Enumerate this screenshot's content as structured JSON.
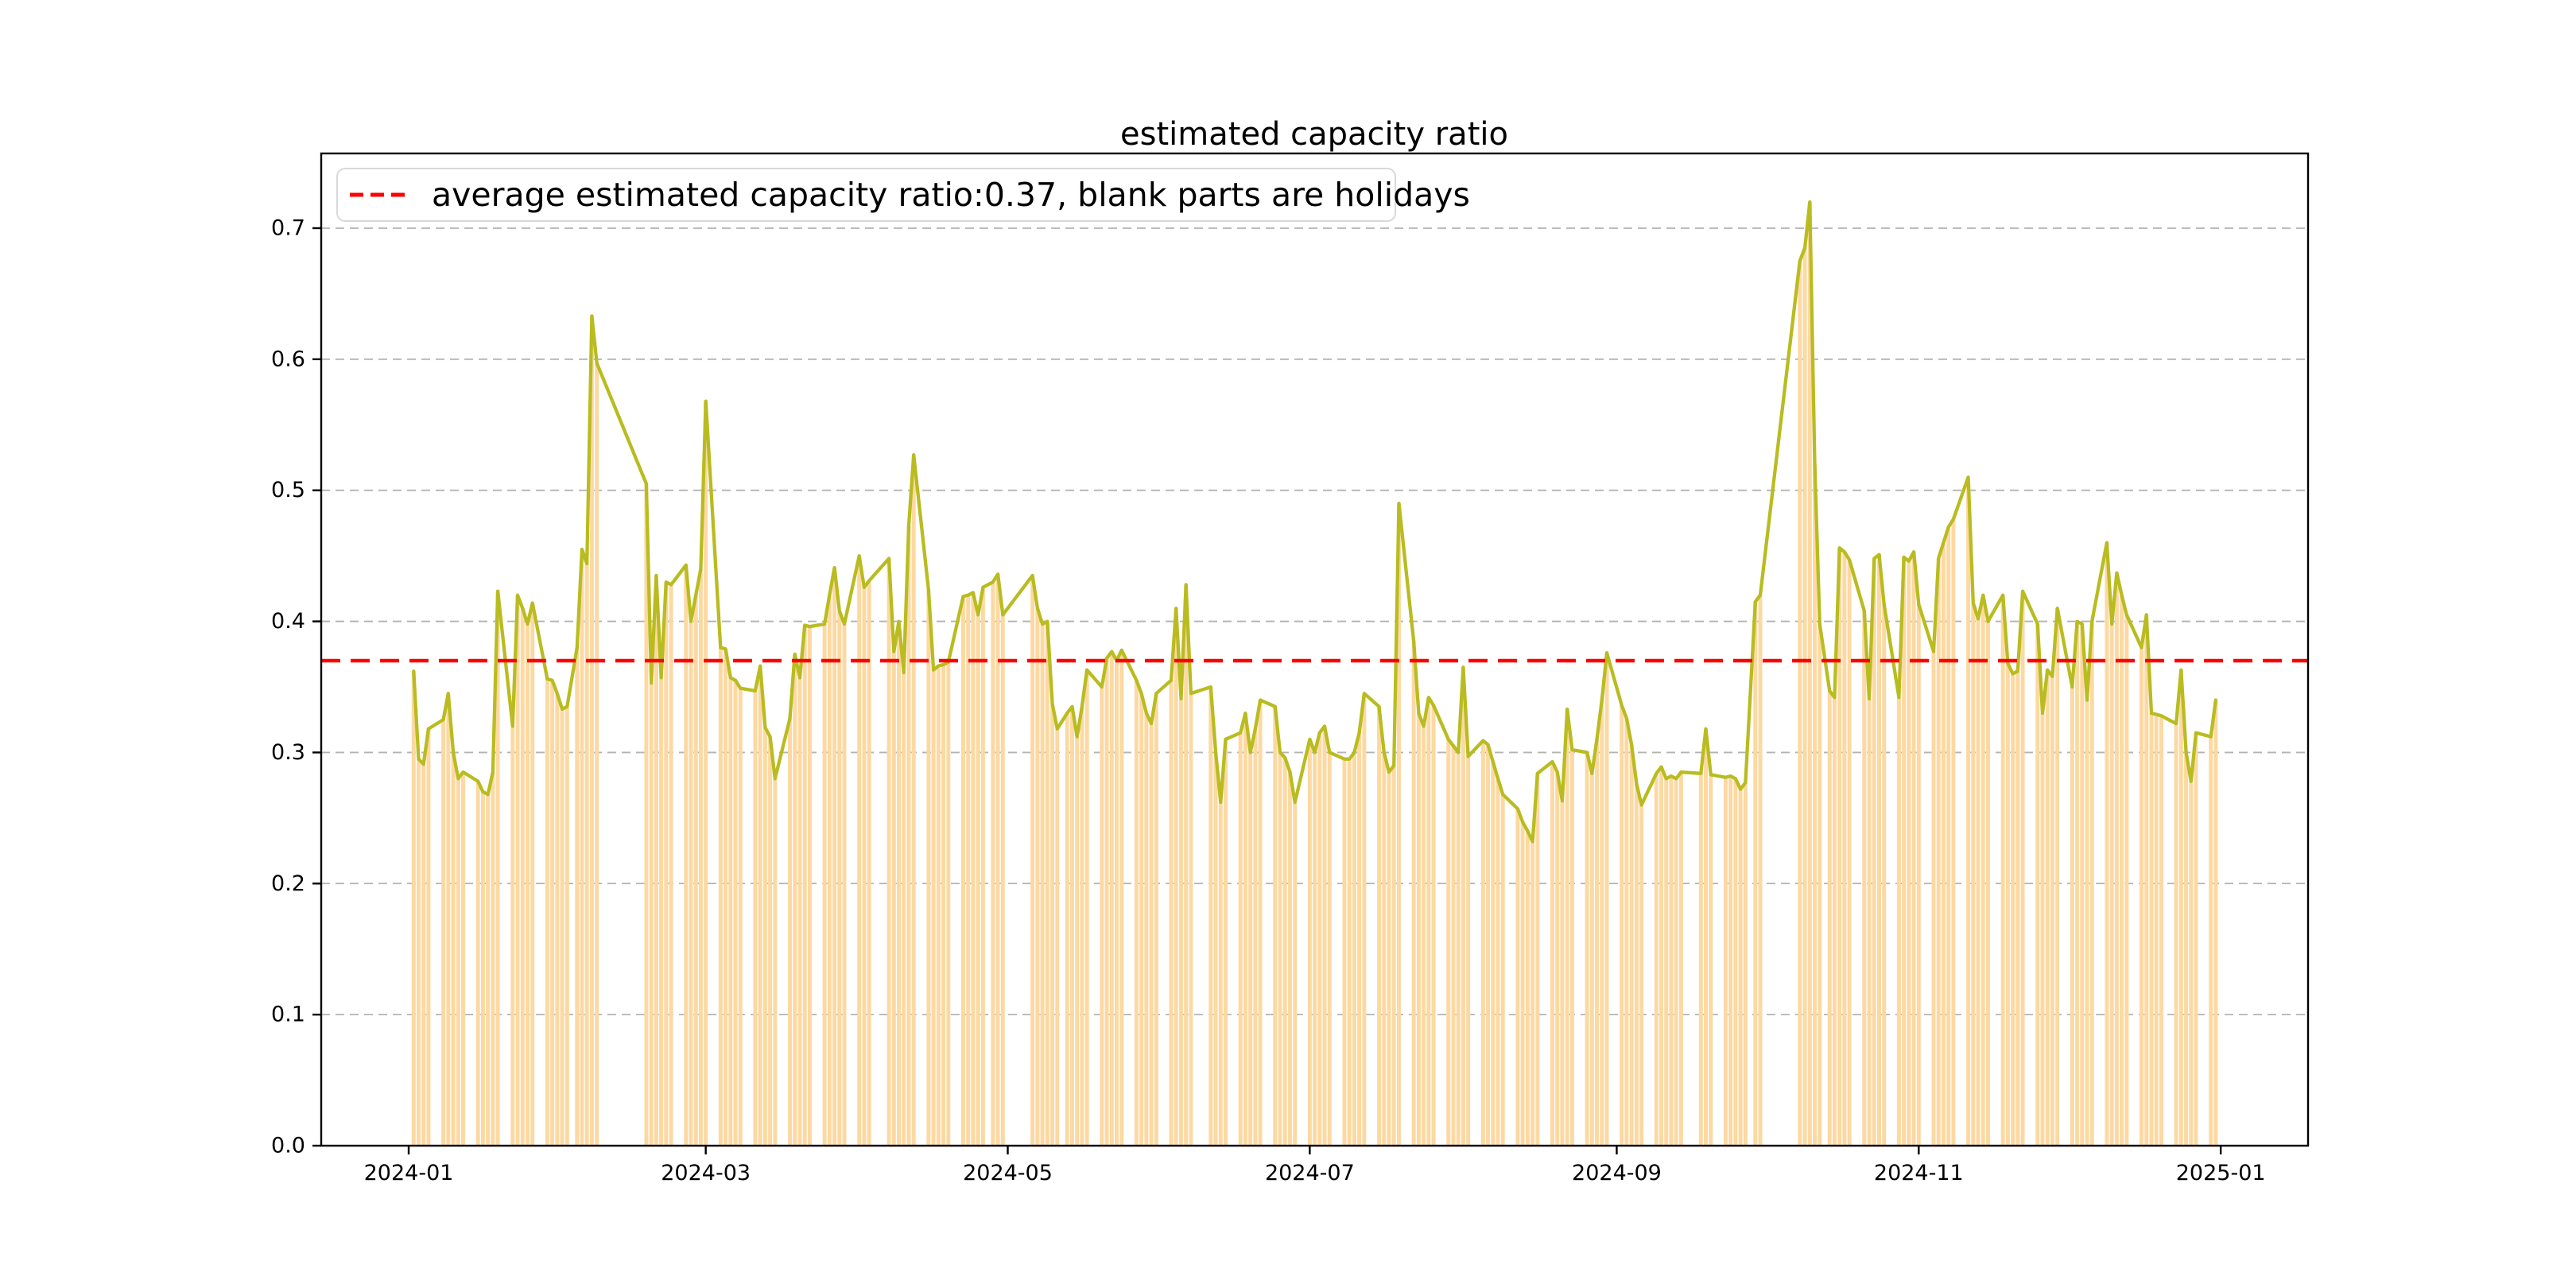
{
  "title": "estimated capacity ratio",
  "legend": {
    "label": "average estimated capacity ratio:0.37, blank parts are holidays",
    "sample_color": "#ff0000"
  },
  "chart_data": {
    "type": "line",
    "title": "estimated capacity ratio",
    "xlabel": "",
    "ylabel": "",
    "grid": true,
    "legend_position": "upper left",
    "average": 0.37,
    "ylim": [
      0,
      0.757
    ],
    "xlim_days": [
      -17.67,
      383.64
    ],
    "yticks": [
      0.0,
      0.1,
      0.2,
      0.3,
      0.4,
      0.5,
      0.6,
      0.7
    ],
    "xticks": [
      {
        "label": "2024-01",
        "day": 0
      },
      {
        "label": "2024-03",
        "day": 60
      },
      {
        "label": "2024-05",
        "day": 121
      },
      {
        "label": "2024-07",
        "day": 182
      },
      {
        "label": "2024-09",
        "day": 244
      },
      {
        "label": "2024-11",
        "day": 305
      },
      {
        "label": "2025-01",
        "day": 366
      }
    ],
    "start_date": "2024-01-01",
    "months": [
      "2024-01",
      "2024-02",
      "2024-03",
      "2024-04",
      "2024-05",
      "2024-06",
      "2024-07",
      "2024-08",
      "2024-09",
      "2024-10",
      "2024-11",
      "2024-12"
    ],
    "values_by_month": {
      "2024-01": [
        null,
        0.362,
        0.295,
        0.291,
        0.318,
        null,
        null,
        0.325,
        0.345,
        0.3,
        0.28,
        0.285,
        null,
        null,
        0.278,
        0.27,
        0.268,
        0.285,
        0.423,
        null,
        null,
        0.32,
        0.42,
        0.41,
        0.398,
        0.414,
        null,
        null,
        0.356,
        0.355,
        0.345
      ],
      "2024-02": [
        0.333,
        0.335,
        null,
        0.38,
        0.455,
        0.444,
        0.633,
        0.597,
        null,
        null,
        null,
        null,
        null,
        null,
        null,
        null,
        null,
        0.505,
        0.353,
        0.435,
        0.357,
        0.43,
        0.428,
        null,
        null,
        0.443,
        0.4,
        0.42,
        0.44
      ],
      "2024-03": [
        0.568,
        null,
        null,
        0.38,
        0.379,
        0.357,
        0.355,
        0.349,
        null,
        null,
        0.347,
        0.366,
        0.319,
        0.312,
        0.28,
        null,
        null,
        0.326,
        0.375,
        0.357,
        0.397,
        0.396,
        null,
        null,
        0.398,
        0.42,
        0.441,
        0.408,
        0.398,
        null,
        null
      ],
      "2024-04": [
        0.45,
        0.426,
        0.431,
        null,
        null,
        null,
        0.448,
        0.377,
        0.4,
        0.361,
        0.473,
        0.527,
        null,
        null,
        0.424,
        0.363,
        0.366,
        0.367,
        0.369,
        null,
        null,
        0.419,
        0.42,
        0.422,
        0.405,
        0.426,
        null,
        0.43,
        0.436,
        0.405
      ],
      "2024-05": [
        null,
        null,
        null,
        null,
        null,
        0.435,
        0.41,
        0.398,
        0.4,
        0.337,
        0.318,
        null,
        0.33,
        0.335,
        0.312,
        0.335,
        0.363,
        null,
        null,
        0.35,
        0.372,
        0.377,
        0.37,
        0.378,
        null,
        null,
        0.355,
        0.345,
        0.33,
        0.322,
        0.345
      ],
      "2024-06": [
        null,
        null,
        0.355,
        0.41,
        0.341,
        0.428,
        0.345,
        null,
        null,
        null,
        0.35,
        0.3,
        0.262,
        0.31,
        null,
        null,
        0.315,
        0.33,
        0.3,
        0.318,
        0.34,
        null,
        null,
        0.335,
        0.3,
        0.296,
        0.285,
        0.262,
        null,
        null
      ],
      "2024-07": [
        0.31,
        0.3,
        0.315,
        0.32,
        0.3,
        null,
        null,
        0.295,
        0.295,
        0.3,
        0.315,
        0.345,
        null,
        null,
        0.335,
        0.3,
        0.285,
        0.29,
        0.49,
        null,
        null,
        0.385,
        0.33,
        0.32,
        0.342,
        0.336,
        null,
        null,
        0.31,
        0.305,
        0.3
      ],
      "2024-08": [
        0.365,
        0.297,
        null,
        null,
        0.309,
        0.306,
        0.293,
        0.28,
        0.268,
        null,
        null,
        0.257,
        0.247,
        0.24,
        0.232,
        0.284,
        null,
        null,
        0.293,
        0.285,
        0.263,
        0.333,
        0.302,
        null,
        null,
        0.3,
        0.284,
        0.31,
        0.34,
        0.376,
        null
      ],
      "2024-09": [
        null,
        0.336,
        0.326,
        0.306,
        0.276,
        0.26,
        null,
        null,
        0.284,
        0.289,
        0.28,
        0.282,
        0.28,
        0.285,
        null,
        null,
        null,
        0.284,
        0.318,
        0.283,
        null,
        null,
        0.281,
        0.282,
        0.28,
        0.272,
        0.277,
        null,
        0.415,
        0.42
      ],
      "2024-10": [
        null,
        null,
        null,
        null,
        null,
        null,
        null,
        0.675,
        0.685,
        0.72,
        0.52,
        0.398,
        null,
        0.347,
        0.342,
        0.456,
        0.453,
        0.447,
        null,
        null,
        0.408,
        0.341,
        0.448,
        0.451,
        0.413,
        null,
        null,
        0.342,
        0.449,
        0.446,
        0.453
      ],
      "2024-11": [
        0.413,
        null,
        null,
        0.377,
        0.448,
        0.46,
        0.472,
        0.478,
        null,
        null,
        0.51,
        0.414,
        0.402,
        0.42,
        0.4,
        null,
        null,
        0.42,
        0.368,
        0.36,
        0.362,
        0.423,
        null,
        null,
        0.398,
        0.33,
        0.363,
        0.358,
        0.41,
        null
      ],
      "2024-12": [
        null,
        0.35,
        0.4,
        0.398,
        0.34,
        0.4,
        null,
        null,
        0.46,
        0.398,
        0.437,
        0.42,
        0.405,
        null,
        null,
        0.38,
        0.405,
        0.33,
        0.329,
        0.328,
        null,
        null,
        0.322,
        0.363,
        0.3,
        0.278,
        0.315,
        null,
        null,
        0.312,
        0.34
      ]
    },
    "colors": {
      "bar": "#fcd9a2",
      "line": "#b9bc20",
      "average_line": "#ff0000",
      "grid": "#b3b3b3",
      "axis": "#000000",
      "legend_border": "#d9d9d9"
    }
  }
}
